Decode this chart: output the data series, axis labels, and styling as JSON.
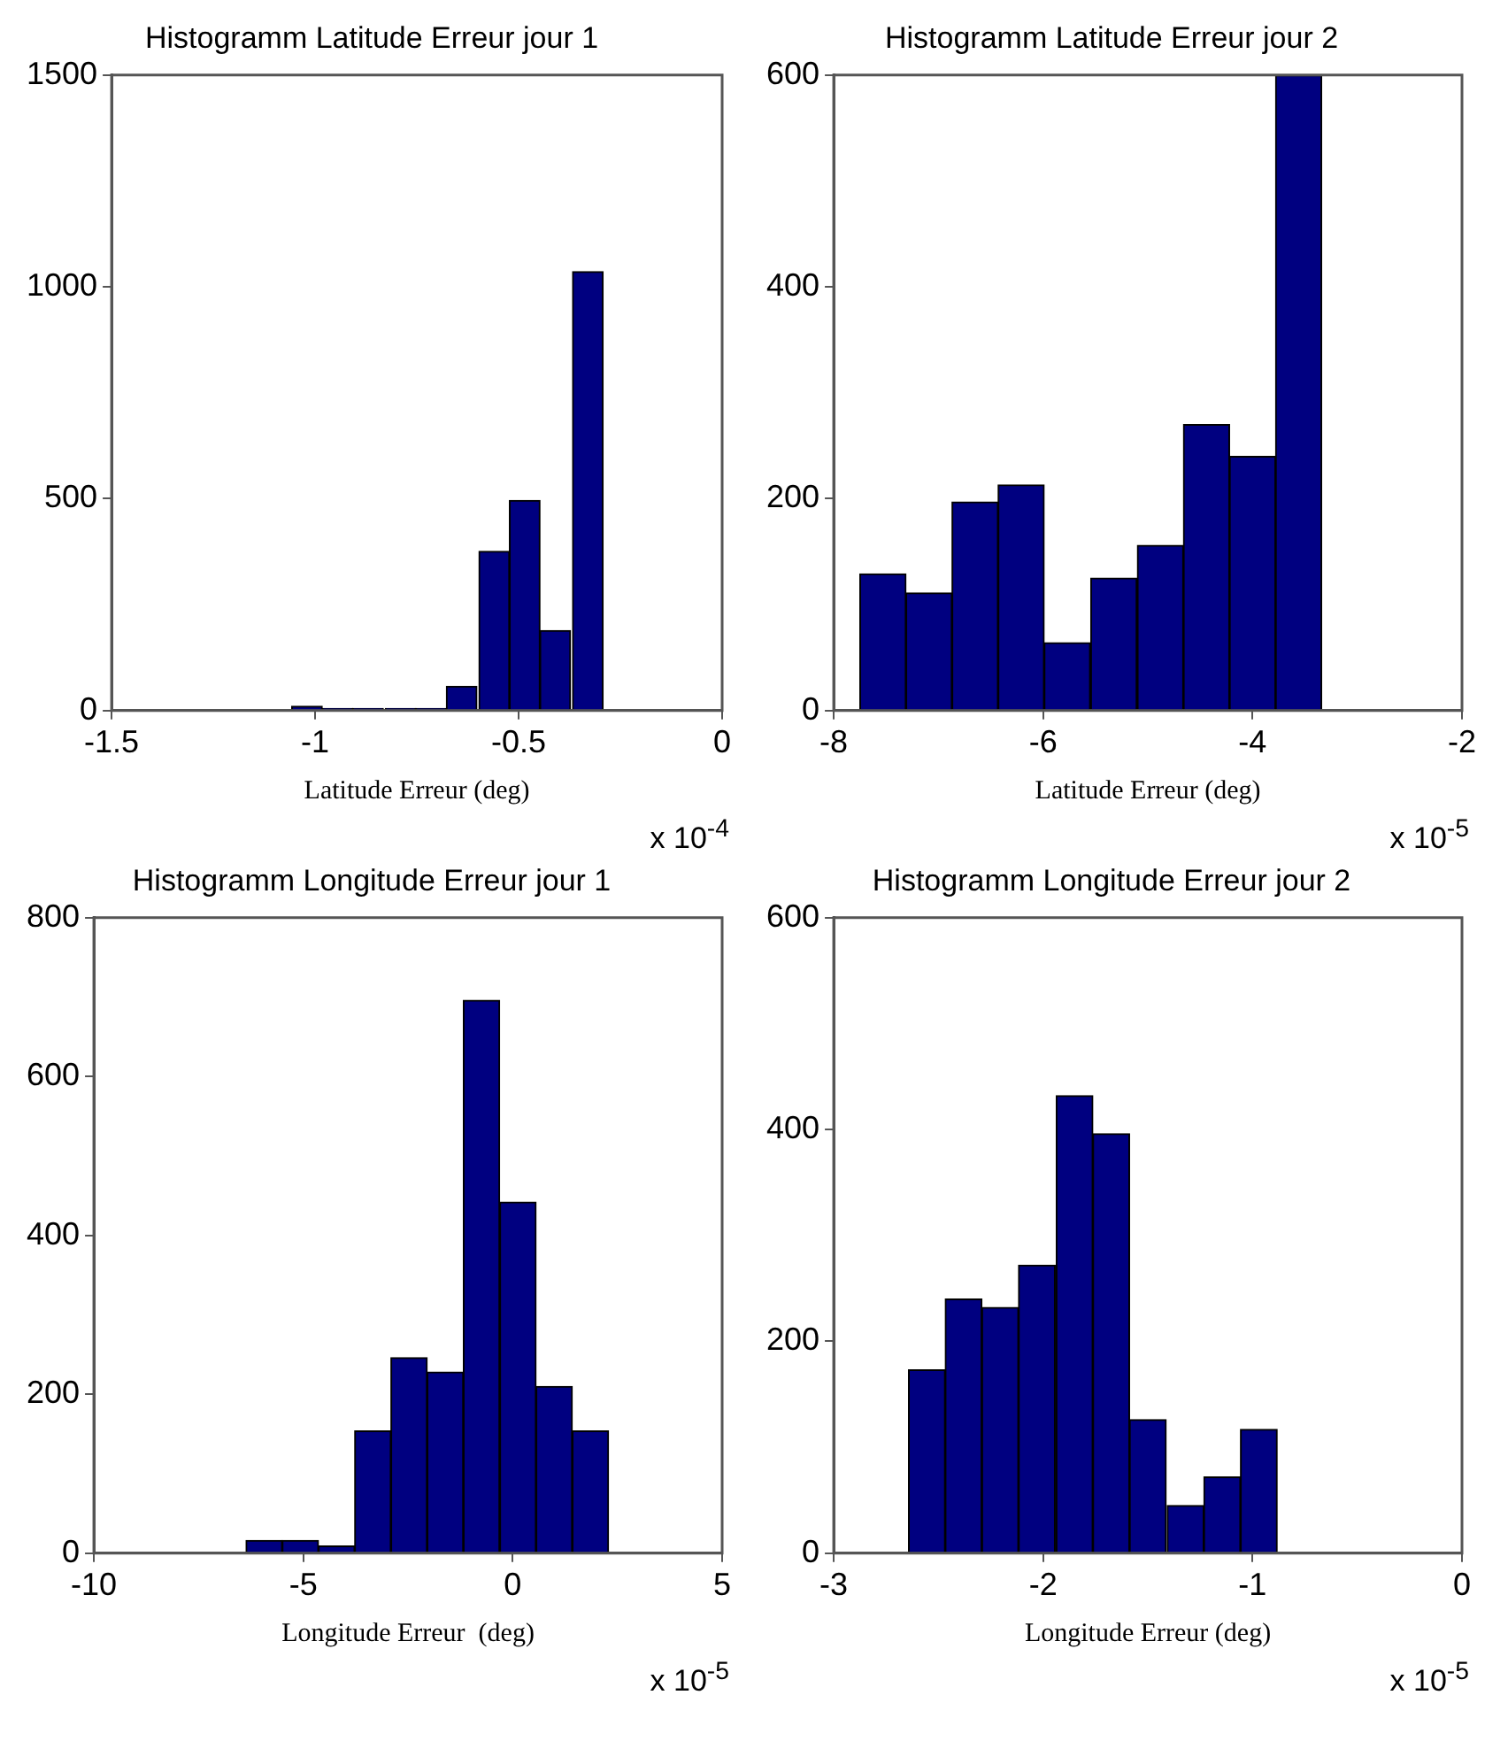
{
  "chart_data": [
    {
      "type": "histogram",
      "title": "Histogramm Latitude Erreur jour 1",
      "xlabel": "Latitude Erreur (deg)",
      "annotations": [
        "x 10$^{-4}$"
      ],
      "color": "#000080",
      "grid": false,
      "xlim": [
        -1.5,
        0
      ],
      "xticks": [
        -1.5,
        -1,
        -0.5,
        0
      ],
      "ylim": [
        0,
        1500
      ],
      "yticks": [
        0,
        500,
        1000,
        1500
      ],
      "bins": [
        -1.06,
        -0.98,
        -0.91,
        -0.83,
        -0.75,
        -0.68,
        -0.6,
        -0.52,
        -0.45,
        -0.37,
        -0.29
      ],
      "values": [
        10,
        5,
        5,
        5,
        5,
        57,
        376,
        496,
        189,
        1036
      ]
    },
    {
      "type": "histogram",
      "title": "Histogramm Latitude Erreur jour 2",
      "xlabel": "Latitude Erreur (deg)",
      "annotations": [
        "x 10$^{-5}$"
      ],
      "color": "#000080",
      "grid": false,
      "xlim": [
        -8,
        -2
      ],
      "xticks": [
        -8,
        -6,
        -4,
        -2
      ],
      "ylim": [
        0,
        600
      ],
      "yticks": [
        0,
        200,
        400,
        600
      ],
      "bins": [
        -7.75,
        -7.31,
        -6.87,
        -6.43,
        -5.99,
        -5.55,
        -5.1,
        -4.66,
        -4.22,
        -3.78,
        -3.34
      ],
      "values": [
        129,
        111,
        197,
        213,
        64,
        125,
        156,
        270,
        240,
        600
      ]
    },
    {
      "type": "histogram",
      "title": "Histogramm Longitude Erreur jour 1",
      "xlabel": "Longitude Erreur  (deg)",
      "annotations": [
        "x 10$^{-5}$"
      ],
      "color": "#000080",
      "grid": false,
      "xlim": [
        -10,
        5
      ],
      "xticks": [
        -10,
        -5,
        0,
        5
      ],
      "ylim": [
        0,
        800
      ],
      "yticks": [
        0,
        200,
        400,
        600,
        800
      ],
      "bins": [
        -6.37,
        -5.5,
        -4.64,
        -3.77,
        -2.91,
        -2.04,
        -1.18,
        -0.31,
        0.56,
        1.42,
        2.29
      ],
      "values": [
        16,
        16,
        9,
        154,
        246,
        228,
        696,
        442,
        210,
        154
      ]
    },
    {
      "type": "histogram",
      "title": "Histogramm Longitude Erreur jour 2",
      "xlabel": "Longitude Erreur (deg)",
      "annotations": [
        "x 10$^{-5}$"
      ],
      "color": "#000080",
      "grid": false,
      "xlim": [
        -3,
        0
      ],
      "xticks": [
        -3,
        -2,
        -1,
        0
      ],
      "ylim": [
        0,
        600
      ],
      "yticks": [
        0,
        200,
        400,
        600
      ],
      "bins": [
        -2.64,
        -2.47,
        -2.29,
        -2.12,
        -1.94,
        -1.76,
        -1.59,
        -1.41,
        -1.23,
        -1.06,
        -0.88
      ],
      "values": [
        173,
        240,
        232,
        272,
        432,
        396,
        126,
        45,
        72,
        117
      ]
    }
  ]
}
